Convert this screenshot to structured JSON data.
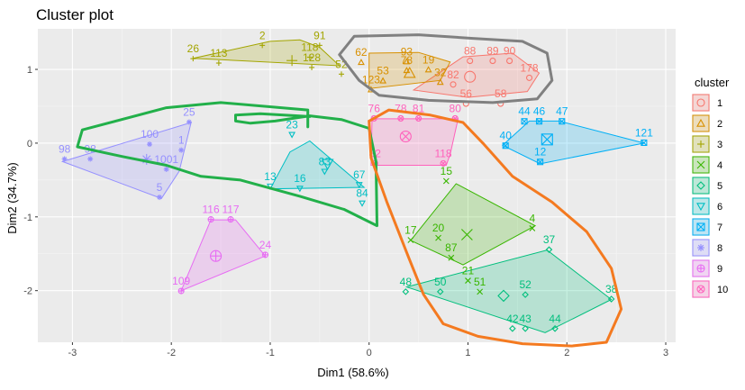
{
  "chart_data": {
    "type": "scatter",
    "title": "Cluster plot",
    "xlabel": "Dim1 (58.6%)",
    "ylabel": "Dim2 (34.7%)",
    "xlim": [
      -3.35,
      3.1
    ],
    "ylim": [
      -2.7,
      1.55
    ],
    "xticks": [
      -3,
      -2,
      -1,
      0,
      1,
      2,
      3
    ],
    "yticks": [
      -2,
      -1,
      0,
      1
    ],
    "grid": true,
    "legend_title": "cluster",
    "legend_position": "right",
    "series": [
      {
        "name": "1",
        "color": "#F8766D",
        "shape": "circle",
        "center": [
          1.02,
          0.9
        ],
        "hull": [
          [
            0.45,
            0.72
          ],
          [
            0.95,
            1.17
          ],
          [
            1.45,
            1.22
          ],
          [
            1.72,
            0.95
          ],
          [
            1.6,
            0.7
          ],
          [
            1.0,
            0.62
          ],
          [
            0.45,
            0.72
          ]
        ],
        "points": [
          {
            "label": "88",
            "x": 1.02,
            "y": 1.25
          },
          {
            "label": "89",
            "x": 1.25,
            "y": 1.25
          },
          {
            "label": "90",
            "x": 1.42,
            "y": 1.25
          },
          {
            "label": "178",
            "x": 1.62,
            "y": 1.02
          },
          {
            "label": "56",
            "x": 0.98,
            "y": 0.67
          },
          {
            "label": "58",
            "x": 1.33,
            "y": 0.67
          },
          {
            "label": "82",
            "x": 0.85,
            "y": 0.93
          }
        ]
      },
      {
        "name": "2",
        "color": "#D89000",
        "shape": "triangle",
        "center": [
          0.41,
          0.95
        ],
        "hull": [
          [
            0.0,
            0.74
          ],
          [
            0.0,
            1.22
          ],
          [
            0.5,
            1.23
          ],
          [
            0.82,
            1.1
          ],
          [
            0.72,
            0.85
          ],
          [
            0.0,
            0.74
          ]
        ],
        "points": [
          {
            "label": "62",
            "x": -0.08,
            "y": 1.23
          },
          {
            "label": "53",
            "x": 0.14,
            "y": 0.98
          },
          {
            "label": "93",
            "x": 0.38,
            "y": 1.24
          },
          {
            "label": "19",
            "x": 0.6,
            "y": 1.13
          },
          {
            "label": "78",
            "x": 0.38,
            "y": 1.12
          },
          {
            "label": "123",
            "x": 0.02,
            "y": 0.86
          },
          {
            "label": "32",
            "x": 0.72,
            "y": 0.96
          }
        ]
      },
      {
        "name": "3",
        "color": "#A3A500",
        "shape": "plus",
        "center": [
          -0.78,
          1.12
        ],
        "hull": [
          [
            -1.78,
            1.15
          ],
          [
            -1.0,
            1.38
          ],
          [
            -0.7,
            1.4
          ],
          [
            -0.5,
            1.3
          ],
          [
            -0.3,
            1.05
          ],
          [
            -1.78,
            1.15
          ]
        ],
        "points": [
          {
            "label": "26",
            "x": -1.78,
            "y": 1.28
          },
          {
            "label": "113",
            "x": -1.52,
            "y": 1.22
          },
          {
            "label": "2",
            "x": -1.08,
            "y": 1.46
          },
          {
            "label": "91",
            "x": -0.5,
            "y": 1.46
          },
          {
            "label": "118",
            "x": -0.6,
            "y": 1.3
          },
          {
            "label": "128",
            "x": -0.58,
            "y": 1.16
          },
          {
            "label": "52",
            "x": -0.28,
            "y": 1.07
          }
        ]
      },
      {
        "name": "4",
        "color": "#39B600",
        "shape": "cross",
        "center": [
          0.99,
          -1.24
        ],
        "hull": [
          [
            0.42,
            -1.32
          ],
          [
            0.88,
            -0.55
          ],
          [
            1.68,
            -1.12
          ],
          [
            0.95,
            -1.65
          ],
          [
            0.42,
            -1.32
          ]
        ],
        "points": [
          {
            "label": "15",
            "x": 0.78,
            "y": -0.38
          },
          {
            "label": "4",
            "x": 1.65,
            "y": -1.02
          },
          {
            "label": "17",
            "x": 0.42,
            "y": -1.18
          },
          {
            "label": "20",
            "x": 0.7,
            "y": -1.15
          },
          {
            "label": "87",
            "x": 0.83,
            "y": -1.42
          },
          {
            "label": "21",
            "x": 1.0,
            "y": -1.73
          },
          {
            "label": "51",
            "x": 1.12,
            "y": -1.88
          }
        ]
      },
      {
        "name": "5",
        "color": "#00BF7D",
        "shape": "diamond",
        "center": [
          1.36,
          -2.07
        ],
        "hull": [
          [
            0.38,
            -1.95
          ],
          [
            1.8,
            -1.45
          ],
          [
            2.45,
            -2.12
          ],
          [
            1.78,
            -2.57
          ],
          [
            0.38,
            -1.95
          ]
        ],
        "points": [
          {
            "label": "37",
            "x": 1.82,
            "y": -1.31
          },
          {
            "label": "48",
            "x": 0.37,
            "y": -1.88
          },
          {
            "label": "50",
            "x": 0.72,
            "y": -1.88
          },
          {
            "label": "52",
            "x": 1.58,
            "y": -1.92
          },
          {
            "label": "38",
            "x": 2.45,
            "y": -1.98
          },
          {
            "label": "42",
            "x": 1.45,
            "y": -2.38
          },
          {
            "label": "43",
            "x": 1.58,
            "y": -2.38
          },
          {
            "label": "44",
            "x": 1.88,
            "y": -2.38
          }
        ]
      },
      {
        "name": "6",
        "color": "#00BFC4",
        "shape": "triangle-down",
        "center": [
          -0.42,
          -0.28
        ],
        "hull": [
          [
            -1.0,
            -0.62
          ],
          [
            -0.8,
            -0.12
          ],
          [
            -0.6,
            0.03
          ],
          [
            -0.05,
            -0.6
          ],
          [
            -1.0,
            -0.62
          ]
        ],
        "points": [
          {
            "label": "23",
            "x": -0.78,
            "y": 0.25
          },
          {
            "label": "83",
            "x": -0.45,
            "y": -0.25
          },
          {
            "label": "13",
            "x": -1.0,
            "y": -0.45
          },
          {
            "label": "16",
            "x": -0.7,
            "y": -0.48
          },
          {
            "label": "84",
            "x": -0.07,
            "y": -0.68
          },
          {
            "label": "67",
            "x": -0.1,
            "y": -0.43
          }
        ]
      },
      {
        "name": "7",
        "color": "#00B0F6",
        "shape": "square-x",
        "center": [
          1.8,
          0.05
        ],
        "hull": [
          [
            1.35,
            -0.03
          ],
          [
            1.62,
            0.3
          ],
          [
            1.92,
            0.3
          ],
          [
            2.78,
            0.0
          ],
          [
            1.73,
            -0.28
          ],
          [
            1.35,
            -0.03
          ]
        ],
        "points": [
          {
            "label": "44",
            "x": 1.57,
            "y": 0.43
          },
          {
            "label": "46",
            "x": 1.72,
            "y": 0.43
          },
          {
            "label": "47",
            "x": 1.95,
            "y": 0.43
          },
          {
            "label": "40",
            "x": 1.38,
            "y": 0.1
          },
          {
            "label": "121",
            "x": 2.78,
            "y": 0.14
          },
          {
            "label": "12",
            "x": 1.73,
            "y": -0.12
          }
        ]
      },
      {
        "name": "8",
        "color": "#9590FF",
        "shape": "star",
        "center": [
          -2.25,
          -0.22
        ],
        "hull": [
          [
            -3.1,
            -0.25
          ],
          [
            -1.8,
            0.28
          ],
          [
            -1.92,
            -0.38
          ],
          [
            -2.1,
            -0.75
          ],
          [
            -3.1,
            -0.25
          ]
        ],
        "points": [
          {
            "label": "25",
            "x": -1.82,
            "y": 0.42
          },
          {
            "label": "98",
            "x": -3.08,
            "y": -0.08
          },
          {
            "label": "98",
            "x": -2.82,
            "y": -0.08
          },
          {
            "label": "1",
            "x": -1.9,
            "y": 0.04
          },
          {
            "label": "100",
            "x": -2.22,
            "y": 0.12
          },
          {
            "label": "1001",
            "x": -2.05,
            "y": -0.22
          },
          {
            "label": "5",
            "x": -2.12,
            "y": -0.6
          }
        ]
      },
      {
        "name": "9",
        "color": "#E76BF3",
        "shape": "circle-plus",
        "center": [
          -1.55,
          -1.53
        ],
        "hull": [
          [
            -1.9,
            -2.0
          ],
          [
            -1.6,
            -1.04
          ],
          [
            -1.35,
            -1.04
          ],
          [
            -1.05,
            -1.53
          ],
          [
            -1.9,
            -2.0
          ]
        ],
        "points": [
          {
            "label": "116",
            "x": -1.6,
            "y": -0.9
          },
          {
            "label": "117",
            "x": -1.4,
            "y": -0.9
          },
          {
            "label": "24",
            "x": -1.05,
            "y": -1.38
          },
          {
            "label": "109",
            "x": -1.9,
            "y": -1.87
          }
        ]
      },
      {
        "name": "10",
        "color": "#FF62BC",
        "shape": "circle-cross",
        "center": [
          0.37,
          0.09
        ],
        "hull": [
          [
            0.03,
            0.33
          ],
          [
            0.9,
            0.33
          ],
          [
            0.82,
            -0.15
          ],
          [
            0.78,
            -0.3
          ],
          [
            0.02,
            -0.3
          ],
          [
            0.03,
            0.33
          ]
        ],
        "points": [
          {
            "label": "76",
            "x": 0.05,
            "y": 0.47
          },
          {
            "label": "78",
            "x": 0.32,
            "y": 0.47
          },
          {
            "label": "81",
            "x": 0.5,
            "y": 0.47
          },
          {
            "label": "80",
            "x": 0.87,
            "y": 0.47
          },
          {
            "label": "82",
            "x": 0.06,
            "y": -0.14
          },
          {
            "label": "118",
            "x": 0.75,
            "y": -0.14
          }
        ]
      }
    ],
    "annotations": [
      {
        "name": "green-freehand-loop",
        "color": "#22b04a",
        "path": [
          [
            -0.62,
            0.22
          ],
          [
            -0.62,
            0.45
          ],
          [
            -1.5,
            0.55
          ],
          [
            -2.05,
            0.48
          ],
          [
            -2.9,
            0.18
          ],
          [
            -2.95,
            -0.05
          ],
          [
            -2.5,
            -0.18
          ],
          [
            -2.05,
            -0.3
          ],
          [
            -1.7,
            -0.45
          ],
          [
            -1.3,
            -0.5
          ],
          [
            -0.7,
            -0.72
          ],
          [
            -0.25,
            -0.9
          ],
          [
            0.08,
            -1.12
          ],
          [
            0.07,
            -0.25
          ],
          [
            0.0,
            0.2
          ],
          [
            -0.28,
            0.32
          ],
          [
            -0.6,
            0.37
          ],
          [
            -0.95,
            0.3
          ],
          [
            -1.2,
            0.27
          ],
          [
            -1.35,
            0.3
          ],
          [
            -1.35,
            0.38
          ],
          [
            -1.1,
            0.4
          ],
          [
            -0.6,
            0.36
          ]
        ]
      },
      {
        "name": "orange-freehand-loop",
        "color": "#f47a20",
        "path": [
          [
            0.0,
            0.3
          ],
          [
            0.02,
            -0.2
          ],
          [
            0.18,
            -0.8
          ],
          [
            0.4,
            -1.55
          ],
          [
            0.55,
            -2.05
          ],
          [
            0.75,
            -2.45
          ],
          [
            1.1,
            -2.62
          ],
          [
            1.55,
            -2.72
          ],
          [
            2.05,
            -2.75
          ],
          [
            2.4,
            -2.7
          ],
          [
            2.55,
            -2.25
          ],
          [
            2.45,
            -1.7
          ],
          [
            2.2,
            -1.2
          ],
          [
            1.85,
            -0.8
          ],
          [
            1.45,
            -0.45
          ],
          [
            1.15,
            0.0
          ],
          [
            0.95,
            0.28
          ],
          [
            0.62,
            0.38
          ],
          [
            0.2,
            0.45
          ],
          [
            0.0,
            0.3
          ]
        ]
      },
      {
        "name": "gray-freehand-loop",
        "color": "#808080",
        "path": [
          [
            -0.3,
            1.2
          ],
          [
            -0.15,
            1.45
          ],
          [
            0.5,
            1.47
          ],
          [
            1.05,
            1.42
          ],
          [
            1.55,
            1.38
          ],
          [
            1.8,
            1.22
          ],
          [
            1.85,
            0.85
          ],
          [
            1.7,
            0.6
          ],
          [
            1.25,
            0.55
          ],
          [
            0.6,
            0.58
          ],
          [
            0.1,
            0.65
          ],
          [
            -0.1,
            0.85
          ],
          [
            -0.3,
            1.2
          ]
        ]
      }
    ]
  }
}
